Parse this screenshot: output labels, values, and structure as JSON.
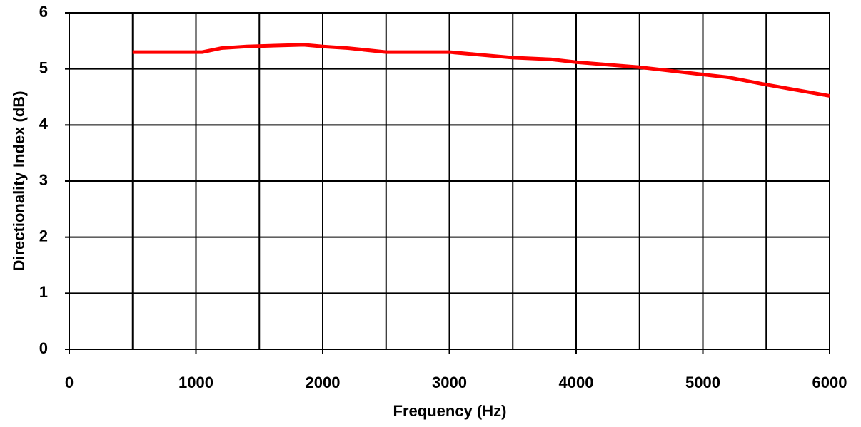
{
  "chart_data": {
    "type": "line",
    "xlabel": "Frequency (Hz)",
    "ylabel": "Directionality Index (dB)",
    "x": [
      500,
      1050,
      1200,
      1400,
      1850,
      2000,
      2200,
      2500,
      3000,
      3500,
      3800,
      4000,
      4500,
      5000,
      5200,
      5500,
      6000
    ],
    "series": [
      {
        "color": "#ff0000",
        "values": [
          5.3,
          5.3,
          5.37,
          5.4,
          5.43,
          5.4,
          5.37,
          5.3,
          5.3,
          5.2,
          5.17,
          5.12,
          5.03,
          4.9,
          4.85,
          4.72,
          4.52
        ]
      }
    ],
    "xlim": [
      0,
      6000
    ],
    "xticks": [
      0,
      1000,
      2000,
      3000,
      4000,
      5000,
      6000
    ],
    "x_minor_ticks": [
      500,
      1500,
      2500,
      3500,
      4500,
      5500
    ],
    "ylim": [
      0,
      6
    ],
    "yticks": [
      0,
      1,
      2,
      3,
      4,
      5,
      6
    ],
    "grid": true
  }
}
